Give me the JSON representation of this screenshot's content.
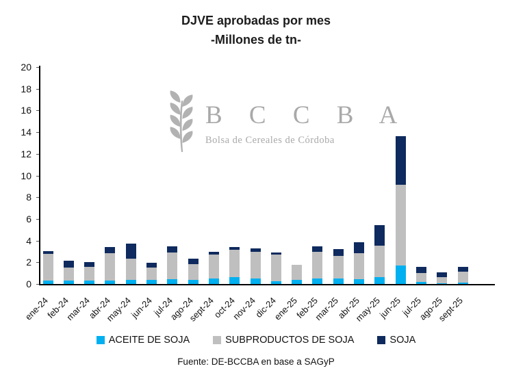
{
  "title": {
    "line1": "DJVE aprobadas por mes",
    "line2": "-Millones de tn-"
  },
  "watermark": {
    "icon": "wheat-stalk-icon",
    "acronym": "B C C B A",
    "subtitle": "Bolsa de Cereales de Córdoba",
    "color": "#a9a9a9"
  },
  "footer": {
    "source": "Fuente: DE-BCCBA en base a SAGyP"
  },
  "chart_data": {
    "type": "bar",
    "stacked": true,
    "title": "DJVE aprobadas por mes -Millones de tn-",
    "xlabel": "",
    "ylabel": "",
    "ylim": [
      0,
      20
    ],
    "ytick_step": 2,
    "grid": false,
    "legend_position": "bottom",
    "categories": [
      "ene-24",
      "feb-24",
      "mar-24",
      "abr-24",
      "may-24",
      "jun-24",
      "jul-24",
      "ago-24",
      "sept-24",
      "oct-24",
      "nov-24",
      "dic-24",
      "ene-25",
      "feb-25",
      "mar-25",
      "abr-25",
      "may-25",
      "jun-25",
      "jul-25",
      "ago-25",
      "sept-25"
    ],
    "series": [
      {
        "name": "ACEITE DE SOJA",
        "color": "#00b0f0",
        "values": [
          0.3,
          0.3,
          0.3,
          0.3,
          0.35,
          0.35,
          0.45,
          0.35,
          0.5,
          0.65,
          0.5,
          0.25,
          0.4,
          0.5,
          0.5,
          0.45,
          0.6,
          1.7,
          0.2,
          0.05,
          0.15
        ]
      },
      {
        "name": "SUBPRODUCTOS DE SOJA",
        "color": "#bfbfbf",
        "values": [
          2.45,
          1.2,
          1.3,
          2.55,
          2.0,
          1.15,
          2.45,
          1.5,
          2.2,
          2.5,
          2.45,
          2.45,
          1.35,
          2.45,
          2.1,
          2.4,
          2.95,
          7.45,
          0.8,
          0.55,
          1.0
        ]
      },
      {
        "name": "SOJA",
        "color": "#0e2a5e",
        "values": [
          0.25,
          0.65,
          0.45,
          0.55,
          1.35,
          0.45,
          0.55,
          0.5,
          0.25,
          0.25,
          0.3,
          0.2,
          0.0,
          0.5,
          0.6,
          1.0,
          1.85,
          4.45,
          0.55,
          0.5,
          0.45
        ]
      }
    ]
  }
}
